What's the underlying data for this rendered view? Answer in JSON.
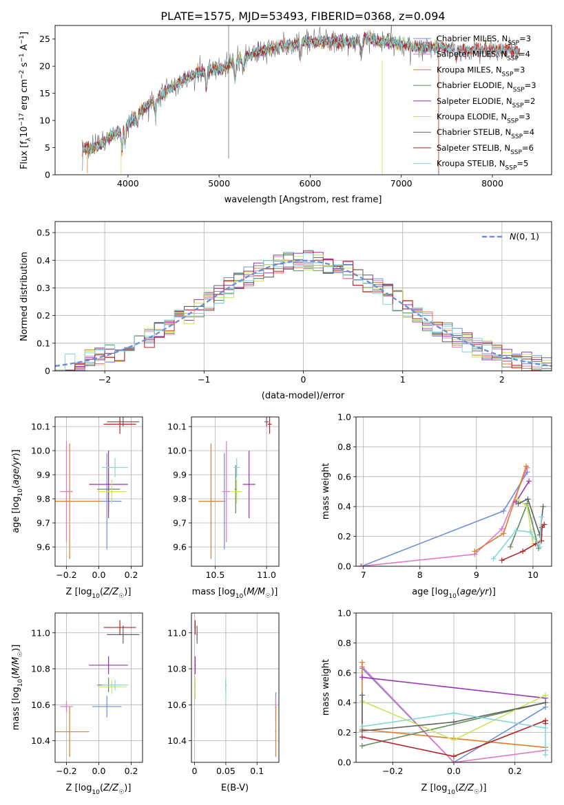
{
  "figure_title": "PLATE=1575, MJD=53493, FIBERID=0368, z=0.094",
  "colors": {
    "chabrier_miles": "#6a8fd8",
    "salpeter_miles": "#e377c2",
    "kroupa_miles": "#e07b2a",
    "chabrier_elodie": "#5e8a5e",
    "salpeter_elodie": "#9b2fb5",
    "kroupa_elodie": "#c8e65a",
    "chabrier_stelib": "#606060",
    "salpeter_stelib": "#b22222",
    "kroupa_stelib": "#80d8d8",
    "gaussian": "#6a8fd8"
  },
  "chart_data": [
    {
      "id": "spectrum",
      "type": "line",
      "xlabel": "wavelength [Angstrom, rest frame]",
      "ylabel_html": "Flux [f_λ 10^-17 erg cm^-2 s^-1 A^-1]",
      "xlim": [
        3200,
        8650
      ],
      "ylim": [
        0,
        27.5
      ],
      "xticks": [
        4000,
        5000,
        6000,
        7000,
        8000
      ],
      "yticks": [
        0,
        5,
        10,
        15,
        20,
        25
      ],
      "trend_x": [
        3500,
        3700,
        3900,
        4000,
        4200,
        4400,
        4600,
        4800,
        5000,
        5200,
        5400,
        5600,
        5800,
        6000,
        6200,
        6400,
        6600,
        6800,
        7000,
        7200,
        7400,
        7600,
        7800,
        8000,
        8200,
        8400
      ],
      "trend_y": [
        4.5,
        5.5,
        8.0,
        9.5,
        12.5,
        15.0,
        17.5,
        19.0,
        19.5,
        21.0,
        22.5,
        23.5,
        24.0,
        24.5,
        24.5,
        24.5,
        25.0,
        24.5,
        24.0,
        23.5,
        23.5,
        23.0,
        23.0,
        23.0,
        23.0,
        22.5
      ],
      "legend": [
        {
          "label": "Chabrier MILES",
          "n": "3",
          "color_key": "chabrier_miles"
        },
        {
          "label": "Salpeter MILES",
          "n": "4",
          "color_key": "salpeter_miles"
        },
        {
          "label": "Kroupa MILES",
          "n": "3",
          "color_key": "kroupa_miles"
        },
        {
          "label": "Chabrier ELODIE",
          "n": "3",
          "color_key": "chabrier_elodie"
        },
        {
          "label": "Salpeter ELODIE",
          "n": "2",
          "color_key": "salpeter_elodie"
        },
        {
          "label": "Kroupa ELODIE",
          "n": "3",
          "color_key": "kroupa_elodie"
        },
        {
          "label": "Chabrier STELIB",
          "n": "4",
          "color_key": "chabrier_stelib"
        },
        {
          "label": "Salpeter STELIB",
          "n": "6",
          "color_key": "salpeter_stelib"
        },
        {
          "label": "Kroupa STELIB",
          "n": "5",
          "color_key": "kroupa_stelib"
        }
      ]
    },
    {
      "id": "residuals",
      "type": "histogram",
      "xlabel": "(data-model)/error",
      "ylabel": "Normed distribution",
      "xlim": [
        -2.5,
        2.5
      ],
      "ylim": [
        0,
        0.54
      ],
      "xticks": [
        -2,
        -1,
        0,
        1,
        2
      ],
      "yticks": [
        0.0,
        0.1,
        0.2,
        0.3,
        0.4,
        0.5
      ],
      "bin_width": 0.1,
      "legend_label": "N(0,1)",
      "grid": true
    },
    {
      "id": "age_vs_Z",
      "type": "errorbar",
      "xlabel": "Z [log10(Z/Z☉)]",
      "ylabel": "age  [log10(age/yr)]",
      "xlim": [
        -0.27,
        0.27
      ],
      "ylim": [
        9.52,
        10.14
      ],
      "xticks": [
        -0.2,
        0.0,
        0.2
      ],
      "yticks": [
        9.6,
        9.7,
        9.8,
        9.9,
        10.0,
        10.1
      ],
      "points": [
        {
          "c": "chabrier_miles",
          "x": 0.05,
          "y": 9.79,
          "xe": 0.09,
          "ye": 0.2
        },
        {
          "c": "salpeter_miles",
          "x": -0.2,
          "y": 9.83,
          "xe": 0.04,
          "ye": 0.21
        },
        {
          "c": "kroupa_miles",
          "x": -0.18,
          "y": 9.79,
          "xe": 0.2,
          "ye": 0.24
        },
        {
          "c": "chabrier_elodie",
          "x": 0.06,
          "y": 9.84,
          "xe": 0.07,
          "ye": 0.1
        },
        {
          "c": "salpeter_elodie",
          "x": 0.06,
          "y": 9.86,
          "xe": 0.12,
          "ye": 0.14
        },
        {
          "c": "kroupa_elodie",
          "x": 0.08,
          "y": 9.83,
          "xe": 0.09,
          "ye": 0.05
        },
        {
          "c": "chabrier_stelib",
          "x": 0.15,
          "y": 10.12,
          "xe": 0.1,
          "ye": 0.02
        },
        {
          "c": "salpeter_stelib",
          "x": 0.13,
          "y": 10.11,
          "xe": 0.1,
          "ye": 0.04
        },
        {
          "c": "kroupa_stelib",
          "x": 0.1,
          "y": 9.93,
          "xe": 0.08,
          "ye": 0.04
        }
      ]
    },
    {
      "id": "age_vs_mass",
      "type": "errorbar",
      "xlabel": "mass [log10(M/M☉)]",
      "ylabel": "",
      "xlim": [
        10.27,
        11.12
      ],
      "ylim": [
        9.52,
        10.14
      ],
      "xticks": [
        10.5,
        11.0
      ],
      "yticks": [
        9.6,
        9.7,
        9.8,
        9.9,
        10.0,
        10.1
      ],
      "points": [
        {
          "c": "chabrier_miles",
          "x": 10.59,
          "y": 9.79,
          "xe": 0.01,
          "ye": 0.2
        },
        {
          "c": "salpeter_miles",
          "x": 10.61,
          "y": 9.83,
          "xe": 0.04,
          "ye": 0.21
        },
        {
          "c": "kroupa_miles",
          "x": 10.46,
          "y": 9.79,
          "xe": 0.12,
          "ye": 0.24
        },
        {
          "c": "chabrier_elodie",
          "x": 10.7,
          "y": 9.84,
          "xe": 0.01,
          "ye": 0.1
        },
        {
          "c": "salpeter_elodie",
          "x": 10.83,
          "y": 9.86,
          "xe": 0.06,
          "ye": 0.14
        },
        {
          "c": "kroupa_elodie",
          "x": 10.71,
          "y": 9.83,
          "xe": 0.05,
          "ye": 0.05
        },
        {
          "c": "chabrier_stelib",
          "x": 11.0,
          "y": 10.12,
          "xe": 0.02,
          "ye": 0.02
        },
        {
          "c": "salpeter_stelib",
          "x": 11.03,
          "y": 10.11,
          "xe": 0.02,
          "ye": 0.04
        },
        {
          "c": "kroupa_stelib",
          "x": 10.71,
          "y": 9.93,
          "xe": 0.03,
          "ye": 0.04
        }
      ]
    },
    {
      "id": "mass_weight_vs_age",
      "type": "line",
      "xlabel": "age  [log10(age/yr)]",
      "ylabel": "mass weight",
      "xlim": [
        6.87,
        10.33
      ],
      "ylim": [
        0,
        1
      ],
      "xticks": [
        7,
        8,
        9,
        10
      ],
      "yticks": [
        0.0,
        0.2,
        0.4,
        0.6,
        0.8,
        1.0
      ],
      "series": [
        {
          "c": "chabrier_miles",
          "x": [
            6.97,
            9.48,
            9.9
          ],
          "y": [
            0.0,
            0.37,
            0.63
          ]
        },
        {
          "c": "salpeter_miles",
          "x": [
            6.95,
            8.97,
            9.45,
            9.9
          ],
          "y": [
            0.0,
            0.08,
            0.25,
            0.66
          ]
        },
        {
          "c": "kroupa_miles",
          "x": [
            8.97,
            9.48,
            9.88
          ],
          "y": [
            0.1,
            0.22,
            0.67
          ]
        },
        {
          "c": "chabrier_elodie",
          "x": [
            9.6,
            9.9,
            10.1
          ],
          "y": [
            0.13,
            0.42,
            0.12
          ]
        },
        {
          "c": "salpeter_elodie",
          "x": [
            9.7,
            9.93
          ],
          "y": [
            0.43,
            0.57
          ]
        },
        {
          "c": "kroupa_elodie",
          "x": [
            9.72,
            9.9,
            10.0
          ],
          "y": [
            0.45,
            0.4,
            0.15
          ]
        },
        {
          "c": "chabrier_stelib",
          "x": [
            9.74,
            9.91,
            10.12,
            10.18
          ],
          "y": [
            0.42,
            0.45,
            0.21,
            0.4
          ]
        },
        {
          "c": "salpeter_stelib",
          "x": [
            9.45,
            9.82,
            10.05,
            10.15,
            10.16,
            10.2
          ],
          "y": [
            0.04,
            0.1,
            0.15,
            0.17,
            0.26,
            0.28
          ]
        },
        {
          "c": "kroupa_stelib",
          "x": [
            9.3,
            9.7,
            9.95,
            10.12,
            10.15
          ],
          "y": [
            0.05,
            0.24,
            0.23,
            0.13,
            0.33
          ]
        }
      ]
    },
    {
      "id": "mass_vs_Z",
      "type": "errorbar",
      "xlabel": "Z [log10(Z/Z☉)]",
      "ylabel": "mass [log10(M/M☉)]",
      "xlim": [
        -0.27,
        0.27
      ],
      "ylim": [
        10.28,
        11.11
      ],
      "xticks": [
        -0.2,
        0.0,
        0.2
      ],
      "yticks": [
        10.4,
        10.6,
        10.8,
        11.0
      ],
      "points": [
        {
          "c": "chabrier_miles",
          "x": 0.05,
          "y": 10.59,
          "xe": 0.09,
          "ye": 0.06
        },
        {
          "c": "salpeter_miles",
          "x": -0.2,
          "y": 10.59,
          "xe": 0.04,
          "ye": 0.03
        },
        {
          "c": "kroupa_miles",
          "x": -0.18,
          "y": 10.45,
          "xe": 0.12,
          "ye": 0.14
        },
        {
          "c": "chabrier_elodie",
          "x": 0.06,
          "y": 10.71,
          "xe": 0.07,
          "ye": 0.04
        },
        {
          "c": "salpeter_elodie",
          "x": 0.06,
          "y": 10.82,
          "xe": 0.12,
          "ye": 0.05
        },
        {
          "c": "kroupa_elodie",
          "x": 0.08,
          "y": 10.7,
          "xe": 0.09,
          "ye": 0.04
        },
        {
          "c": "chabrier_stelib",
          "x": 0.15,
          "y": 10.99,
          "xe": 0.1,
          "ye": 0.05
        },
        {
          "c": "salpeter_stelib",
          "x": 0.13,
          "y": 11.03,
          "xe": 0.1,
          "ye": 0.04
        },
        {
          "c": "kroupa_stelib",
          "x": 0.1,
          "y": 10.71,
          "xe": 0.08,
          "ye": 0.03
        }
      ]
    },
    {
      "id": "mass_vs_ebv",
      "type": "errorbar",
      "xlabel": "E(B-V)",
      "ylabel": "",
      "xlim": [
        -0.005,
        0.135
      ],
      "ylim": [
        10.28,
        11.11
      ],
      "xticks": [
        0.0,
        0.05,
        0.1
      ],
      "yticks": [
        10.4,
        10.6,
        10.8,
        11.0
      ],
      "points": [
        {
          "c": "chabrier_miles",
          "x": 0.13,
          "y": 10.59,
          "xe": 0.001,
          "ye": 0.08
        },
        {
          "c": "salpeter_miles",
          "x": 0.13,
          "y": 10.59,
          "xe": 0.001,
          "ye": 0.05
        },
        {
          "c": "kroupa_miles",
          "x": 0.13,
          "y": 10.45,
          "xe": 0.001,
          "ye": 0.14
        },
        {
          "c": "chabrier_elodie",
          "x": 0.05,
          "y": 10.71,
          "xe": 0.001,
          "ye": 0.03
        },
        {
          "c": "salpeter_elodie",
          "x": 0.001,
          "y": 10.82,
          "xe": 0.001,
          "ye": 0.05
        },
        {
          "c": "kroupa_elodie",
          "x": 0.001,
          "y": 10.69,
          "xe": 0.001,
          "ye": 0.06
        },
        {
          "c": "chabrier_stelib",
          "x": 0.004,
          "y": 10.99,
          "xe": 0.001,
          "ye": 0.05
        },
        {
          "c": "salpeter_stelib",
          "x": 0.001,
          "y": 11.03,
          "xe": 0.001,
          "ye": 0.04
        },
        {
          "c": "kroupa_stelib",
          "x": 0.05,
          "y": 10.68,
          "xe": 0.001,
          "ye": 0.06
        }
      ]
    },
    {
      "id": "mass_weight_vs_Z",
      "type": "line",
      "xlabel": "Z [log10(Z/Z☉)]",
      "ylabel": "mass weight",
      "xlim": [
        -0.32,
        0.32
      ],
      "ylim": [
        0,
        1
      ],
      "xticks": [
        -0.2,
        0.0,
        0.2
      ],
      "yticks": [
        0.0,
        0.2,
        0.4,
        0.6,
        0.8,
        1.0
      ],
      "series": [
        {
          "c": "chabrier_miles",
          "x": [
            -0.3,
            0.0,
            0.3
          ],
          "y": [
            0.63,
            0.0,
            0.37
          ]
        },
        {
          "c": "salpeter_miles",
          "x": [
            -0.3,
            0.0,
            0.3
          ],
          "y": [
            0.64,
            0.0,
            0.08
          ]
        },
        {
          "c": "kroupa_miles",
          "x": [
            -0.3,
            -0.3,
            0.0,
            0.3
          ],
          "y": [
            0.67,
            0.22,
            0.16,
            0.1
          ]
        },
        {
          "c": "chabrier_elodie",
          "x": [
            -0.3,
            0.3
          ],
          "y": [
            0.11,
            0.4
          ]
        },
        {
          "c": "salpeter_elodie",
          "x": [
            -0.3,
            0.3
          ],
          "y": [
            0.57,
            0.43
          ]
        },
        {
          "c": "kroupa_elodie",
          "x": [
            -0.3,
            0.0,
            0.3
          ],
          "y": [
            0.41,
            0.15,
            0.45
          ]
        },
        {
          "c": "chabrier_stelib",
          "x": [
            -0.3,
            -0.3,
            0.0,
            0.3
          ],
          "y": [
            0.45,
            0.21,
            0.27,
            0.4
          ]
        },
        {
          "c": "salpeter_stelib",
          "x": [
            -0.3,
            0.0,
            0.3,
            0.3
          ],
          "y": [
            0.17,
            0.04,
            0.28,
            0.26
          ]
        },
        {
          "c": "kroupa_stelib",
          "x": [
            -0.3,
            0.0,
            0.3,
            0.3
          ],
          "y": [
            0.24,
            0.33,
            0.23,
            0.05
          ]
        }
      ]
    }
  ]
}
